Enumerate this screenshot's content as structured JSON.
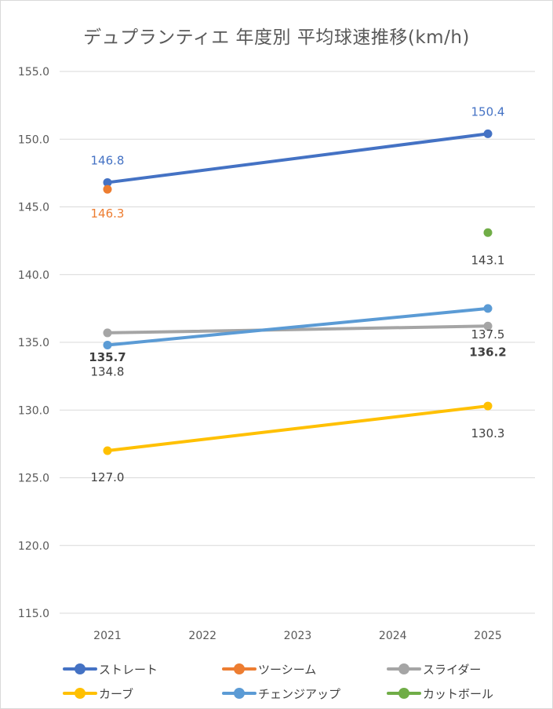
{
  "chart_data": {
    "type": "line",
    "title": "デュプランティエ 年度別 平均球速推移(km/h)",
    "categories": [
      "2021",
      "2022",
      "2023",
      "2024",
      "2025"
    ],
    "ylim": [
      115.0,
      155.0
    ],
    "yticks": [
      "115.0",
      "120.0",
      "125.0",
      "130.0",
      "135.0",
      "140.0",
      "145.0",
      "150.0",
      "155.0"
    ],
    "grid": true,
    "legend_position": "bottom",
    "series": [
      {
        "name": "ストレート",
        "color": "#4472C4",
        "values": [
          146.8,
          null,
          null,
          null,
          150.4
        ],
        "labels": [
          "146.8",
          null,
          null,
          null,
          "150.4"
        ],
        "label_color": "#4472C4",
        "label_bold": false
      },
      {
        "name": "ツーシーム",
        "color": "#ED7D31",
        "values": [
          146.3,
          null,
          null,
          null,
          null
        ],
        "labels": [
          "146.3",
          null,
          null,
          null,
          null
        ],
        "label_color": "#ED7D31",
        "label_bold": false
      },
      {
        "name": "スライダー",
        "color": "#A5A5A5",
        "values": [
          135.7,
          null,
          null,
          null,
          136.2
        ],
        "labels": [
          "135.7",
          null,
          null,
          null,
          "136.2"
        ],
        "label_color": "#404040",
        "label_bold": true
      },
      {
        "name": "カーブ",
        "color": "#FFC000",
        "values": [
          127.0,
          null,
          null,
          null,
          130.3
        ],
        "labels": [
          "127.0",
          null,
          null,
          null,
          "130.3"
        ],
        "label_color": "#404040",
        "label_bold": false
      },
      {
        "name": "チェンジアップ",
        "color": "#5B9BD5",
        "values": [
          134.8,
          null,
          null,
          null,
          137.5
        ],
        "labels": [
          "134.8",
          null,
          null,
          null,
          "137.5"
        ],
        "label_color": "#404040",
        "label_bold": false
      },
      {
        "name": "カットボール",
        "color": "#70AD47",
        "values": [
          null,
          null,
          null,
          null,
          143.1
        ],
        "labels": [
          null,
          null,
          null,
          null,
          "143.1"
        ],
        "label_color": "#404040",
        "label_bold": false
      }
    ]
  }
}
